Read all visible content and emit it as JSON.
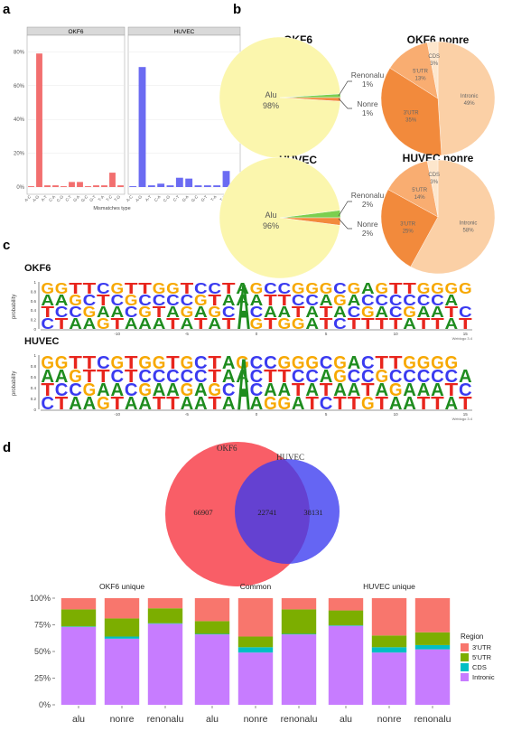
{
  "panels": {
    "a": "a",
    "b": "b",
    "c": "c",
    "d": "d"
  },
  "panel_a": {
    "y_ticks": [
      "80%",
      "60%",
      "40%",
      "20%",
      "0%"
    ],
    "xlabel": "Mismatches type",
    "categories": [
      "A-C",
      "A-G",
      "A-T",
      "C-A",
      "C-G",
      "C-T",
      "G-A",
      "G-C",
      "G-T",
      "T-A",
      "T-C",
      "T-G"
    ],
    "facets": [
      {
        "name": "OKF6",
        "color": "#f26f6f",
        "values": [
          0.5,
          79,
          1,
          1,
          0.5,
          3,
          3,
          0.5,
          1,
          1,
          8.5,
          1
        ]
      },
      {
        "name": "HUVEC",
        "color": "#6b6bf2",
        "values": [
          0.5,
          71,
          1,
          2,
          1,
          5.5,
          5,
          1,
          1,
          1,
          9.5,
          1.5
        ]
      }
    ]
  },
  "panel_b": {
    "pies": [
      {
        "title": "OKF6",
        "labels": [
          {
            "text": "Alu\n98%"
          },
          {
            "text": "Renonalu\n1%"
          },
          {
            "text": "Nonre\n1%"
          }
        ]
      },
      {
        "title": "OKF6 nonre",
        "labels": [
          {
            "text": "Intronic\n49%"
          },
          {
            "text": "3'UTR\n35%"
          },
          {
            "text": "5'UTR\n13%"
          },
          {
            "text": "CDS\n3%"
          }
        ]
      },
      {
        "title": "HUVEC",
        "labels": [
          {
            "text": "Alu\n96%"
          },
          {
            "text": "Renonalu\n2%"
          },
          {
            "text": "Nonre\n2%"
          }
        ]
      },
      {
        "title": "HUVEC nonre",
        "labels": [
          {
            "text": "Intronic\n58%"
          },
          {
            "text": "3'UTR\n25%"
          },
          {
            "text": "5'UTR\n14%"
          },
          {
            "text": "CDS\n3%"
          }
        ]
      }
    ]
  },
  "panel_c": {
    "logos": [
      {
        "title": "OKF6",
        "rows": [
          "GGTTCGTTGGTCCTAGCCGGGCGAGTTGGGG",
          "AAGCTCGCCCCGTAAATTCCAGACCCCCCA",
          "TCCGAACGTAGAGCACAATATACGACGAATC",
          "CTAAGTAAATATATAGTGGATCTTTTATTAT"
        ]
      },
      {
        "title": "HUVEC",
        "rows": [
          "GGTTCGTGGTGCTAGCCGGGCGACTTGGGG",
          "AAGTTCTCCCCCTAACTTCCAGCCGCCCCCA",
          "TCCGAACGAAGAGCACAATATAATAGAAATC",
          "CTAAGTAATTAATATAGGATCTTGTAATTAT"
        ]
      }
    ],
    "ylabel": "probability",
    "x_ticks": [
      "-10",
      "-5",
      "0",
      "5",
      "10",
      "15"
    ],
    "y_ticks": [
      "1",
      "0.8",
      "0.6",
      "0.4",
      "0.2",
      "0"
    ],
    "weblogo": "Weblogo 3.4",
    "colors": {
      "G": "#f7a800",
      "C": "#3a3af0",
      "T": "#e8251d",
      "A": "#1e8c1e"
    }
  },
  "panel_d": {
    "venn": {
      "left_label": "OKF6",
      "right_label": "HUVEC",
      "left_only": "66907",
      "overlap": "22741",
      "right_only": "38131"
    },
    "chart_data": {
      "type": "bar",
      "facets": [
        "OKF6 unique",
        "Common",
        "HUVEC unique"
      ],
      "categories": [
        "alu",
        "nonre",
        "renonalu"
      ],
      "y_ticks": [
        "100%",
        "75%",
        "50%",
        "25%",
        "0%"
      ],
      "legend_title": "Region",
      "series": [
        {
          "name": "Intronic",
          "color": "#c77cff",
          "values": [
            [
              73,
              62,
              76
            ],
            [
              66,
              49,
              66
            ],
            [
              74,
              49,
              52
            ]
          ]
        },
        {
          "name": "CDS",
          "color": "#00bfc4",
          "values": [
            [
              0.5,
              2,
              0.5
            ],
            [
              0.5,
              5,
              0.5
            ],
            [
              0.5,
              5,
              4
            ]
          ]
        },
        {
          "name": "5'UTR",
          "color": "#7cae00",
          "values": [
            [
              16,
              17,
              14
            ],
            [
              12,
              10,
              23
            ],
            [
              14,
              11,
              12
            ]
          ]
        },
        {
          "name": "3'UTR",
          "color": "#f8766d",
          "values": [
            [
              10.5,
              19,
              9.5
            ],
            [
              21.5,
              36,
              10.5
            ],
            [
              11.5,
              35,
              32
            ]
          ]
        }
      ],
      "legend_order": [
        "3'UTR",
        "5'UTR",
        "CDS",
        "Intronic"
      ]
    }
  }
}
